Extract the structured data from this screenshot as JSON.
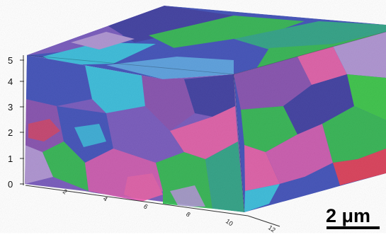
{
  "z_axis": {
    "ticks": [
      "0",
      "1",
      "2",
      "3",
      "4",
      "5"
    ]
  },
  "x_axis": {
    "ticks": [
      "2",
      "4",
      "6",
      "8",
      "10",
      "12"
    ]
  },
  "scale_bar": {
    "label": "2 μm"
  },
  "colors": {
    "blue": "#3d4fc4",
    "indigo": "#3b3aa8",
    "violet": "#7a58c8",
    "purple": "#8b4fb8",
    "magenta": "#d85ab8",
    "pink": "#ee5fb0",
    "green": "#2fbf52",
    "bright_green": "#37d046",
    "teal": "#2aaa8a",
    "cyan": "#35c8ea",
    "sky": "#5aa8ee",
    "red": "#ea3b58",
    "lavender": "#b89ae0"
  }
}
